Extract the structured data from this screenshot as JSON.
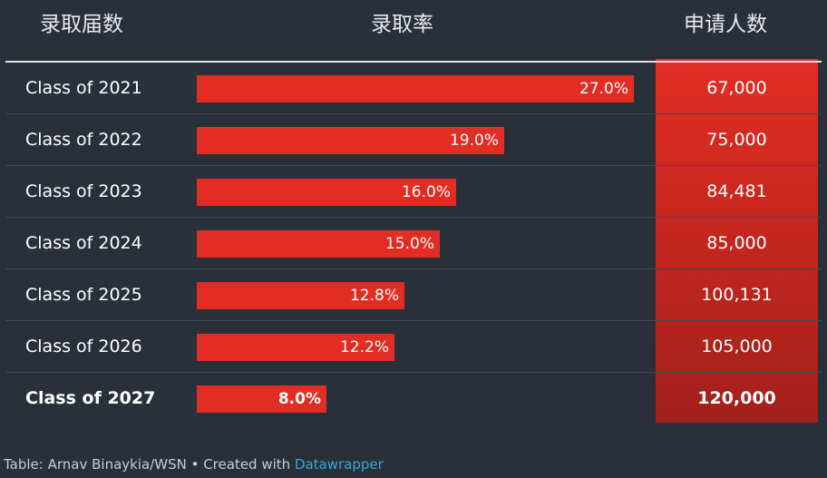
{
  "header": {
    "class_label": "录取届数",
    "rate_label": "录取率",
    "apps_label": "申请人数"
  },
  "chart_data": {
    "type": "bar",
    "categories": [
      "Class of 2021",
      "Class of 2022",
      "Class of 2023",
      "Class of 2024",
      "Class of 2025",
      "Class of 2026",
      "Class of 2027"
    ],
    "values": [
      27.0,
      19.0,
      16.0,
      15.0,
      12.8,
      12.2,
      8.0
    ],
    "value_labels": [
      "27.0%",
      "19.0%",
      "16.0%",
      "15.0%",
      "12.8%",
      "12.2%",
      "8.0%"
    ],
    "applicants": [
      "67,000",
      "75,000",
      "84,481",
      "85,000",
      "100,131",
      "105,000",
      "120,000"
    ],
    "highlight_index": 6,
    "xlim": [
      0,
      27.0
    ],
    "grid": false,
    "colors": {
      "bar": "#e22d24",
      "applicants_column": "#c7271f",
      "background": "#2a303a"
    }
  },
  "footer": {
    "source_text": "Table: Arnav Binaykia/WSN • Created with ",
    "link_text": "Datawrapper"
  }
}
